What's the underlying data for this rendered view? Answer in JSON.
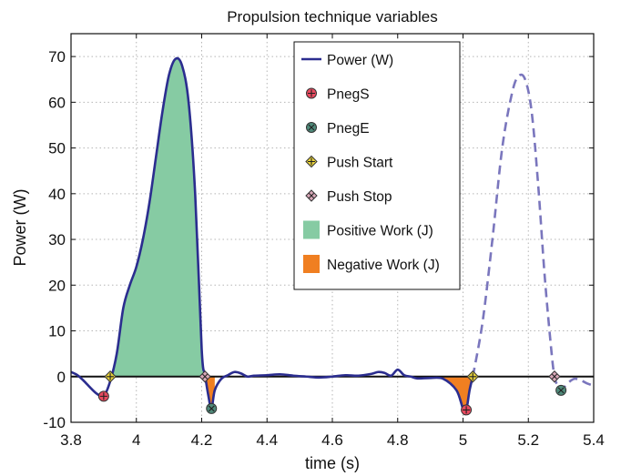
{
  "chart_data": {
    "type": "line",
    "title": "Propulsion technique variables",
    "xlabel": "time (s)",
    "ylabel": "Power (W)",
    "xlim": [
      3.8,
      5.4
    ],
    "ylim": [
      -10,
      75
    ],
    "xticks": [
      3.8,
      4,
      4.2,
      4.4,
      4.6,
      4.8,
      5,
      5.2,
      5.4
    ],
    "xtick_labels": [
      "3.8",
      "4",
      "4.2",
      "4.4",
      "4.6",
      "4.8",
      "5",
      "5.2",
      "5.4"
    ],
    "yticks": [
      -10,
      0,
      10,
      20,
      30,
      40,
      50,
      60,
      70
    ],
    "ytick_labels": [
      "-10",
      "0",
      "10",
      "20",
      "30",
      "40",
      "50",
      "60",
      "70"
    ],
    "grid": true,
    "legend_position": "top-right",
    "colors": {
      "power": "#2b2d8f",
      "power_dashed": "#7a76bd",
      "positive_work": "#86cba3",
      "negative_work": "#f07f21",
      "pnegs": "#e84a5f",
      "pnege": "#4f8a7a",
      "push_start": "#e8d23a",
      "push_stop": "#d9a8b8",
      "zero_line": "#111111"
    },
    "series": [
      {
        "name": "Power (W)",
        "style": "solid",
        "x": [
          3.8,
          3.82,
          3.84,
          3.86,
          3.88,
          3.9,
          3.92,
          3.94,
          3.96,
          3.98,
          4.0,
          4.02,
          4.04,
          4.06,
          4.08,
          4.1,
          4.12,
          4.14,
          4.16,
          4.18,
          4.2,
          4.21,
          4.22,
          4.23,
          4.24,
          4.26,
          4.28,
          4.3,
          4.32,
          4.34,
          4.36,
          4.4,
          4.44,
          4.48,
          4.52,
          4.56,
          4.6,
          4.64,
          4.68,
          4.72,
          4.74,
          4.76,
          4.78,
          4.8,
          4.82,
          4.84,
          4.86,
          4.9,
          4.94,
          4.98,
          5.0,
          5.01,
          5.02,
          5.03
        ],
        "y": [
          1,
          0.3,
          -1,
          -2.5,
          -3.8,
          -4.3,
          -1,
          5,
          15,
          20,
          24,
          30,
          38,
          48,
          58,
          66,
          69.5,
          68,
          60,
          40,
          6,
          0.5,
          -4,
          -7,
          -3,
          -0.5,
          0.3,
          1,
          0.7,
          0,
          0.2,
          0.3,
          0.5,
          0.2,
          0,
          -0.2,
          0,
          0.3,
          0.2,
          0.6,
          1,
          0.8,
          0.2,
          1.5,
          0.3,
          0,
          -0.4,
          -0.3,
          -0.5,
          -3,
          -7,
          -7.3,
          -3,
          0
        ]
      },
      {
        "name": "",
        "style": "dashed",
        "x": [
          5.03,
          5.06,
          5.09,
          5.12,
          5.15,
          5.17,
          5.19,
          5.21,
          5.23,
          5.25,
          5.27,
          5.28,
          5.29,
          5.3,
          5.32,
          5.34,
          5.36,
          5.38,
          5.4
        ],
        "y": [
          0,
          12,
          30,
          50,
          62,
          65.7,
          65,
          58,
          42,
          22,
          6,
          0,
          -2,
          -3,
          -1.5,
          -0.5,
          -0.8,
          -1.5,
          -2
        ]
      }
    ],
    "markers": [
      {
        "name": "PnegS",
        "x": 3.9,
        "y": -4.3,
        "shape": "circle-plus"
      },
      {
        "name": "PnegS",
        "x": 5.01,
        "y": -7.3,
        "shape": "circle-plus"
      },
      {
        "name": "PnegE",
        "x": 4.23,
        "y": -7.0,
        "shape": "circle-x"
      },
      {
        "name": "PnegE",
        "x": 5.3,
        "y": -3.0,
        "shape": "circle-x"
      },
      {
        "name": "Push Start",
        "x": 3.92,
        "y": 0,
        "shape": "diamond-plus"
      },
      {
        "name": "Push Start",
        "x": 5.03,
        "y": 0,
        "shape": "diamond-plus"
      },
      {
        "name": "Push Stop",
        "x": 4.21,
        "y": 0,
        "shape": "diamond-x"
      },
      {
        "name": "Push Stop",
        "x": 5.28,
        "y": 0,
        "shape": "diamond-x"
      }
    ],
    "filled_regions": [
      {
        "name": "Positive Work (J)",
        "x_from": 3.92,
        "x_to": 4.21,
        "sign": "positive"
      },
      {
        "name": "Negative Work (J)",
        "x_from": 4.21,
        "x_to": 4.24,
        "sign": "negative"
      },
      {
        "name": "Negative Work (J)",
        "x_from": 4.9,
        "x_to": 5.03,
        "sign": "negative"
      }
    ],
    "legend": [
      {
        "label": "Power (W)",
        "key": "power"
      },
      {
        "label": "PnegS",
        "key": "pnegs"
      },
      {
        "label": "PnegE",
        "key": "pnege"
      },
      {
        "label": "Push Start",
        "key": "push_start"
      },
      {
        "label": "Push Stop",
        "key": "push_stop"
      },
      {
        "label": "Positive Work (J)",
        "key": "positive_work"
      },
      {
        "label": "Negative Work (J)",
        "key": "negative_work"
      }
    ]
  }
}
